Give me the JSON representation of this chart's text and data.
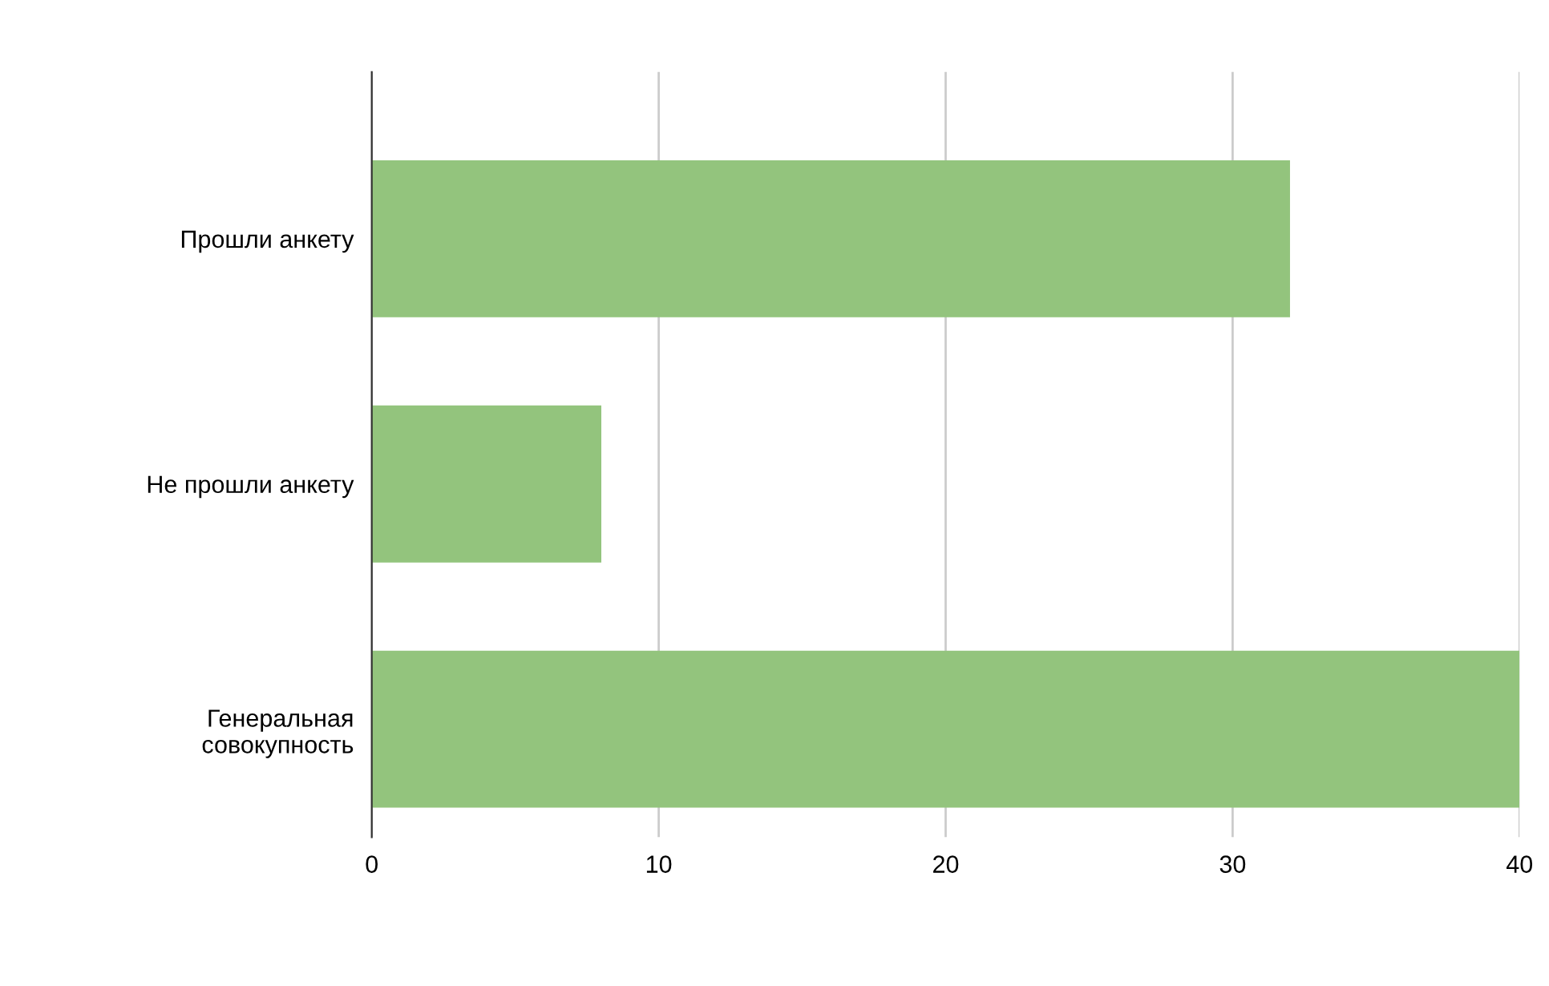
{
  "chart_data": {
    "type": "bar",
    "orientation": "horizontal",
    "categories": [
      "Прошли анкету",
      "Не прошли анкету",
      "Генеральная\nсовокупность"
    ],
    "values": [
      32,
      8,
      40
    ],
    "color": "#93c47d",
    "xlim": [
      0,
      40
    ],
    "xticks": [
      0,
      10,
      20,
      30,
      40
    ],
    "grid": "x",
    "legend": false
  }
}
